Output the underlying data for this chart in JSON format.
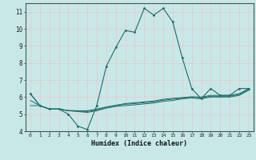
{
  "xlabel": "Humidex (Indice chaleur)",
  "ylabel": "",
  "background_color": "#c8e8e8",
  "grid_color": "#e8c8c8",
  "line_color": "#1a6e6e",
  "xlim": [
    -0.5,
    23.5
  ],
  "ylim": [
    4,
    11.5
  ],
  "xticks": [
    0,
    1,
    2,
    3,
    4,
    5,
    6,
    7,
    8,
    9,
    10,
    11,
    12,
    13,
    14,
    15,
    16,
    17,
    18,
    19,
    20,
    21,
    22,
    23
  ],
  "yticks": [
    4,
    5,
    6,
    7,
    8,
    9,
    10,
    11
  ],
  "main_line_x": [
    0,
    1,
    2,
    3,
    4,
    5,
    6,
    7,
    8,
    9,
    10,
    11,
    12,
    13,
    14,
    15,
    16,
    17,
    18,
    19,
    20,
    21,
    22,
    23
  ],
  "main_line_y": [
    6.2,
    5.5,
    5.3,
    5.3,
    5.0,
    4.3,
    4.1,
    5.5,
    7.8,
    8.9,
    9.9,
    9.8,
    11.2,
    10.8,
    11.2,
    10.4,
    8.3,
    6.5,
    5.9,
    6.5,
    6.1,
    6.1,
    6.5,
    6.5
  ],
  "line2_x": [
    0,
    1,
    2,
    3,
    4,
    5,
    6,
    7,
    8,
    9,
    10,
    11,
    12,
    13,
    14,
    15,
    16,
    17,
    18,
    19,
    20,
    21,
    22,
    23
  ],
  "line2_y": [
    5.5,
    5.5,
    5.3,
    5.3,
    5.2,
    5.15,
    5.1,
    5.2,
    5.35,
    5.45,
    5.5,
    5.55,
    5.6,
    5.65,
    5.75,
    5.8,
    5.9,
    5.95,
    5.9,
    6.0,
    6.0,
    6.0,
    6.1,
    6.4
  ],
  "line3_x": [
    0,
    1,
    2,
    3,
    4,
    5,
    6,
    7,
    8,
    9,
    10,
    11,
    12,
    13,
    14,
    15,
    16,
    17,
    18,
    19,
    20,
    21,
    22,
    23
  ],
  "line3_y": [
    5.8,
    5.5,
    5.3,
    5.3,
    5.2,
    5.18,
    5.15,
    5.25,
    5.4,
    5.5,
    5.58,
    5.62,
    5.67,
    5.72,
    5.82,
    5.88,
    5.93,
    5.98,
    5.95,
    6.05,
    6.05,
    6.05,
    6.15,
    6.45
  ],
  "line4_x": [
    0,
    1,
    2,
    3,
    4,
    5,
    6,
    7,
    8,
    9,
    10,
    11,
    12,
    13,
    14,
    15,
    16,
    17,
    18,
    19,
    20,
    21,
    22,
    23
  ],
  "line4_y": [
    6.2,
    5.5,
    5.3,
    5.3,
    5.22,
    5.2,
    5.2,
    5.3,
    5.42,
    5.52,
    5.62,
    5.67,
    5.72,
    5.77,
    5.87,
    5.92,
    5.97,
    6.02,
    6.0,
    6.1,
    6.1,
    6.1,
    6.2,
    6.5
  ]
}
